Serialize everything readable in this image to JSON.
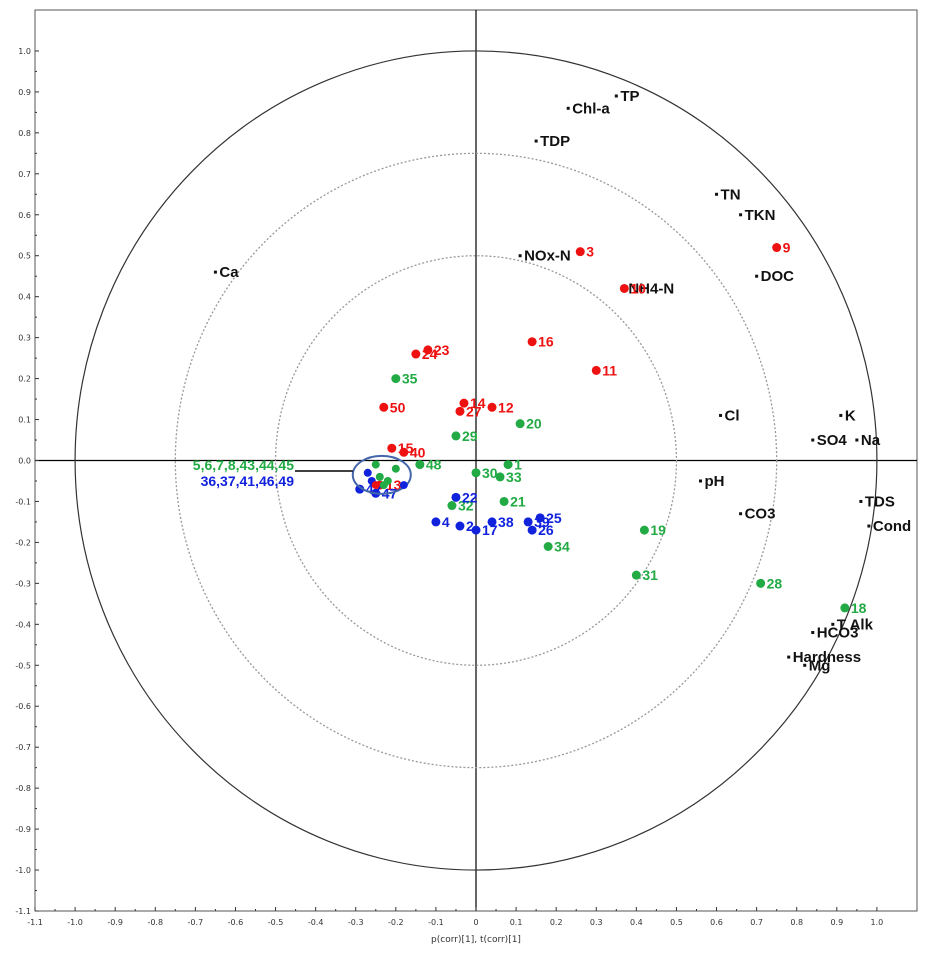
{
  "chart_data": {
    "type": "scatter",
    "title": "",
    "xlabel": "p(corr)[1], t(corr)[1]",
    "ylabel": "",
    "xlim": [
      -1.1,
      1.1
    ],
    "ylim": [
      -1.1,
      1.1
    ],
    "x_ticks": [
      "-1.1",
      "-1.0",
      "-0.9",
      "-0.8",
      "-0.7",
      "-0.6",
      "-0.5",
      "-0.4",
      "-0.3",
      "-0.2",
      "-0.1",
      "0",
      "0.1",
      "0.2",
      "0.3",
      "0.4",
      "0.5",
      "0.6",
      "0.7",
      "0.8",
      "0.9",
      "1.0"
    ],
    "y_ticks": [
      "1.0",
      "0.9",
      "0.8",
      "0.7",
      "0.6",
      "0.5",
      "0.4",
      "0.3",
      "0.2",
      "0.1",
      "0.0",
      "-0.1",
      "-0.2",
      "-0.3",
      "-0.4",
      "-0.5",
      "-0.6",
      "-0.7",
      "-0.8",
      "-0.9",
      "-1.0",
      "-1.1"
    ],
    "circles": [
      {
        "r": 1.0,
        "style": "solid"
      },
      {
        "r": 0.75,
        "style": "dotted"
      },
      {
        "r": 0.5,
        "style": "dotted"
      }
    ],
    "colors": {
      "red": "#ee1111",
      "green": "#22aa44",
      "blue": "#1122dd",
      "black": "#111111"
    },
    "variables": [
      {
        "label": "TP",
        "x": 0.35,
        "y": 0.89
      },
      {
        "label": "Chl-a",
        "x": 0.23,
        "y": 0.86
      },
      {
        "label": "TDP",
        "x": 0.15,
        "y": 0.78
      },
      {
        "label": "TN",
        "x": 0.6,
        "y": 0.65
      },
      {
        "label": "TKN",
        "x": 0.66,
        "y": 0.6
      },
      {
        "label": "NOx-N",
        "x": 0.11,
        "y": 0.5
      },
      {
        "label": "DOC",
        "x": 0.7,
        "y": 0.45
      },
      {
        "label": "Ca",
        "x": -0.65,
        "y": 0.46
      },
      {
        "label": "Cl",
        "x": 0.61,
        "y": 0.11
      },
      {
        "label": "K",
        "x": 0.91,
        "y": 0.11
      },
      {
        "label": "SO4",
        "x": 0.84,
        "y": 0.05
      },
      {
        "label": "Na",
        "x": 0.95,
        "y": 0.05
      },
      {
        "label": "pH",
        "x": 0.56,
        "y": -0.05
      },
      {
        "label": "CO3",
        "x": 0.66,
        "y": -0.13
      },
      {
        "label": "TDS",
        "x": 0.96,
        "y": -0.1
      },
      {
        "label": "Cond",
        "x": 0.98,
        "y": -0.16
      },
      {
        "label": "T Alk",
        "x": 0.89,
        "y": -0.4
      },
      {
        "label": "HCO3",
        "x": 0.84,
        "y": -0.42
      },
      {
        "label": "Hardness",
        "x": 0.78,
        "y": -0.48
      },
      {
        "label": "Mg",
        "x": 0.82,
        "y": -0.5
      },
      {
        "label": "NH4-N",
        "x": 0.37,
        "y": 0.42
      }
    ],
    "series": [
      {
        "color": "red",
        "points": [
          {
            "label": "3",
            "x": 0.26,
            "y": 0.51
          },
          {
            "label": "9",
            "x": 0.75,
            "y": 0.52
          },
          {
            "label": "10",
            "x": 0.37,
            "y": 0.42
          },
          {
            "label": "16",
            "x": 0.14,
            "y": 0.29
          },
          {
            "label": "24",
            "x": -0.15,
            "y": 0.26
          },
          {
            "label": "23",
            "x": -0.12,
            "y": 0.27
          },
          {
            "label": "11",
            "x": 0.3,
            "y": 0.22
          },
          {
            "label": "27",
            "x": -0.04,
            "y": 0.12
          },
          {
            "label": "14",
            "x": -0.03,
            "y": 0.14
          },
          {
            "label": "12",
            "x": 0.04,
            "y": 0.13
          },
          {
            "label": "50",
            "x": -0.23,
            "y": 0.13
          },
          {
            "label": "15",
            "x": -0.21,
            "y": 0.03
          },
          {
            "label": "40",
            "x": -0.18,
            "y": 0.02
          },
          {
            "label": "13",
            "x": -0.24,
            "y": -0.06
          }
        ]
      },
      {
        "color": "green",
        "points": [
          {
            "label": "35",
            "x": -0.2,
            "y": 0.2
          },
          {
            "label": "29",
            "x": -0.05,
            "y": 0.06
          },
          {
            "label": "20",
            "x": 0.11,
            "y": 0.09
          },
          {
            "label": "48",
            "x": -0.14,
            "y": -0.01
          },
          {
            "label": "30",
            "x": 0.0,
            "y": -0.03
          },
          {
            "label": "1",
            "x": 0.08,
            "y": -0.01
          },
          {
            "label": "33",
            "x": 0.06,
            "y": -0.04
          },
          {
            "label": "21",
            "x": 0.07,
            "y": -0.1
          },
          {
            "label": "32",
            "x": -0.06,
            "y": -0.11
          },
          {
            "label": "19",
            "x": 0.42,
            "y": -0.17
          },
          {
            "label": "34",
            "x": 0.18,
            "y": -0.21
          },
          {
            "label": "31",
            "x": 0.4,
            "y": -0.28
          },
          {
            "label": "28",
            "x": 0.71,
            "y": -0.3
          },
          {
            "label": "18",
            "x": 0.92,
            "y": -0.36
          }
        ]
      },
      {
        "color": "blue",
        "points": [
          {
            "label": "22",
            "x": -0.05,
            "y": -0.09
          },
          {
            "label": "4",
            "x": -0.1,
            "y": -0.15
          },
          {
            "label": "2",
            "x": -0.04,
            "y": -0.16
          },
          {
            "label": "17",
            "x": -0.0,
            "y": -0.17
          },
          {
            "label": "38",
            "x": 0.04,
            "y": -0.15
          },
          {
            "label": "39",
            "x": 0.13,
            "y": -0.15
          },
          {
            "label": "25",
            "x": 0.16,
            "y": -0.14
          },
          {
            "label": "26",
            "x": 0.14,
            "y": -0.17
          },
          {
            "label": "42",
            "x": -0.29,
            "y": -0.07
          },
          {
            "label": "47",
            "x": -0.25,
            "y": -0.08
          }
        ]
      }
    ],
    "cluster_labels": {
      "green": "5,6,7,8,43,44,45",
      "blue": "36,37,41,46,49"
    }
  }
}
